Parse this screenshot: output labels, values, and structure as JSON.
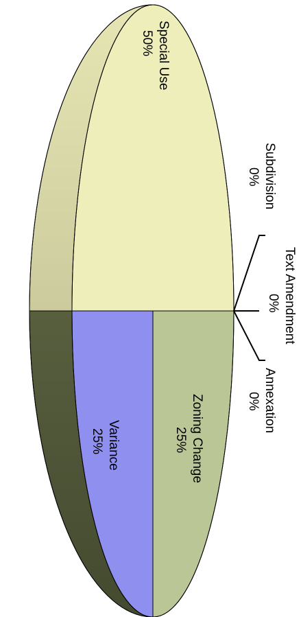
{
  "chart_data": {
    "type": "pie",
    "title": "",
    "style": "3d-rotated",
    "slices": [
      {
        "name": "Special Use",
        "percent_label": "50%",
        "value": 50,
        "color": "#EEEEBA"
      },
      {
        "name": "Subdivision",
        "percent_label": "0%",
        "value": 0,
        "color": "#EEEEBA"
      },
      {
        "name": "Text Amendment",
        "percent_label": "0%",
        "value": 0,
        "color": "#EEEEBA"
      },
      {
        "name": "Annexation",
        "percent_label": "0%",
        "value": 0,
        "color": "#8F8FF0"
      },
      {
        "name": "Zoning Change",
        "percent_label": "25%",
        "value": 25,
        "color": "#8F8FF0"
      },
      {
        "name": "Variance",
        "percent_label": "25%",
        "value": 25,
        "color": "#BAC696"
      }
    ]
  }
}
